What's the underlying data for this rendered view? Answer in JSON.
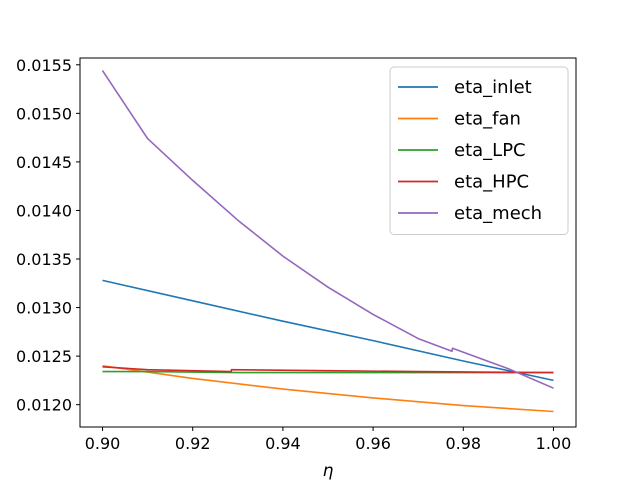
{
  "chart_data": {
    "type": "line",
    "title": "",
    "xlabel": "η",
    "ylabel": "",
    "xlim": [
      0.895,
      1.005
    ],
    "ylim": [
      0.01177,
      0.01557
    ],
    "x_ticks": [
      0.9,
      0.92,
      0.94,
      0.96,
      0.98,
      1.0
    ],
    "x_tick_labels": [
      "0.90",
      "0.92",
      "0.94",
      "0.96",
      "0.98",
      "1.00"
    ],
    "y_ticks": [
      0.012,
      0.0125,
      0.013,
      0.0135,
      0.014,
      0.0145,
      0.015,
      0.0155
    ],
    "y_tick_labels": [
      "0.0120",
      "0.0125",
      "0.0130",
      "0.0135",
      "0.0140",
      "0.0145",
      "0.0150",
      "0.0155"
    ],
    "grid": false,
    "legend_position": "top-right",
    "series": [
      {
        "name": "eta_inlet",
        "color": "#1f77b4",
        "x": [
          0.9,
          0.92,
          0.94,
          0.96,
          0.98,
          1.0
        ],
        "values": [
          0.01328,
          0.01307,
          0.01286,
          0.01266,
          0.01245,
          0.01225
        ]
      },
      {
        "name": "eta_fan",
        "color": "#ff7f0e",
        "x": [
          0.9,
          0.92,
          0.94,
          0.96,
          0.98,
          1.0
        ],
        "values": [
          0.0124,
          0.01227,
          0.01216,
          0.01207,
          0.01199,
          0.01193
        ]
      },
      {
        "name": "eta_LPC",
        "color": "#2ca02c",
        "x": [
          0.9,
          0.91,
          0.93,
          0.95,
          0.97,
          1.0
        ],
        "values": [
          0.01234,
          0.01234,
          0.01233,
          0.01233,
          0.01233,
          0.01233
        ]
      },
      {
        "name": "eta_HPC",
        "color": "#d62728",
        "x": [
          0.9,
          0.91,
          0.9285,
          0.9286,
          0.95,
          0.97,
          1.0
        ],
        "values": [
          0.01239,
          0.01236,
          0.01234,
          0.01236,
          0.01235,
          0.01234,
          0.01233
        ]
      },
      {
        "name": "eta_mech",
        "color": "#9467bd",
        "x": [
          0.9,
          0.91,
          0.92,
          0.93,
          0.94,
          0.95,
          0.96,
          0.97,
          0.9775,
          0.9776,
          0.99,
          1.0
        ],
        "values": [
          0.01544,
          0.01474,
          0.01431,
          0.0139,
          0.01353,
          0.01321,
          0.01293,
          0.01268,
          0.01255,
          0.01258,
          0.01237,
          0.01217
        ]
      }
    ]
  }
}
